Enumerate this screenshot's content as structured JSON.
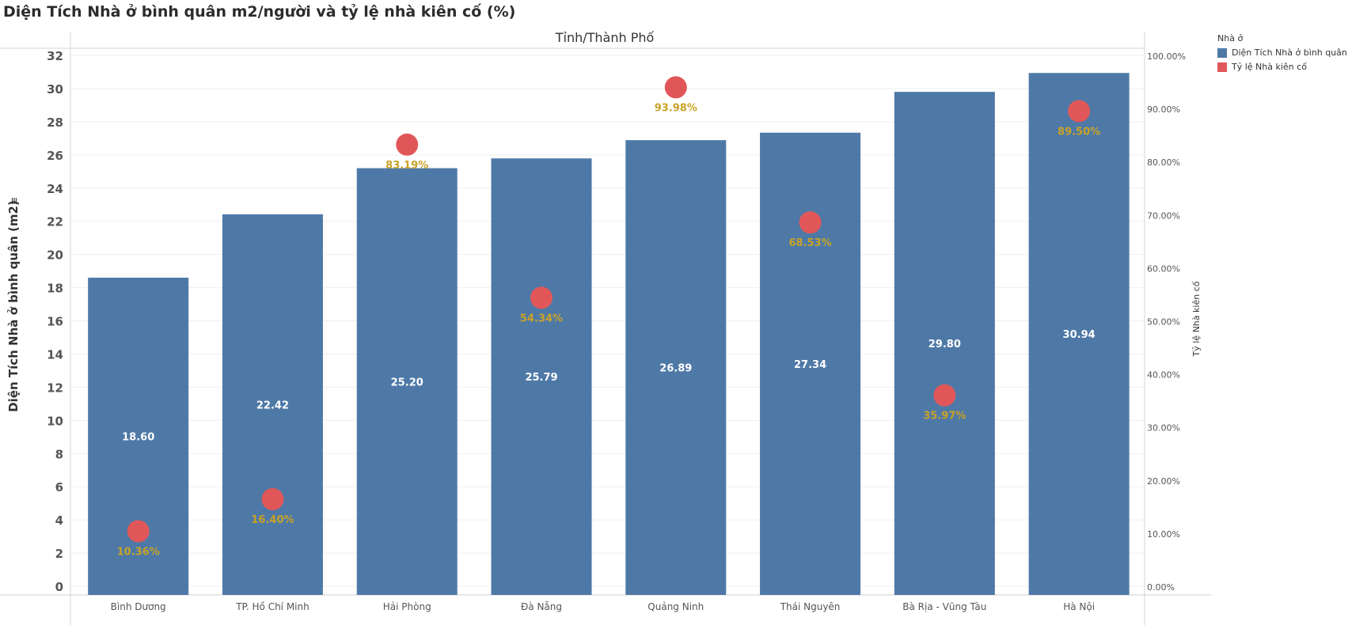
{
  "title": "Diện Tích Nhà ở bình quân m2/người và tỷ lệ nhà kiên cố (%)",
  "colors": {
    "bar": "#4e79a7",
    "dot": "#e15759",
    "dot_label": "#c9a227",
    "bar_label": "#ffffff"
  },
  "chart_data": {
    "type": "bar",
    "column_header": "Tỉnh/Thành Phố",
    "categories": [
      "Bình Dương",
      "TP. Hồ Chí Minh",
      "Hải Phòng",
      "Đà Nẵng",
      "Quảng Ninh",
      "Thái Nguyên",
      "Bà Rịa - Vũng Tàu",
      "Hà Nội"
    ],
    "series": [
      {
        "name": "Diện Tích Nhà ở bình quân",
        "type": "bar",
        "axis": "left",
        "values": [
          18.6,
          22.42,
          25.2,
          25.79,
          26.89,
          27.34,
          29.8,
          30.94
        ],
        "labels": [
          "18.60",
          "22.42",
          "25.20",
          "25.79",
          "26.89",
          "27.34",
          "29.80",
          "30.94"
        ]
      },
      {
        "name": "Tỷ lệ Nhà kiên cố",
        "type": "scatter",
        "axis": "right",
        "values": [
          10.36,
          16.4,
          83.19,
          54.34,
          93.98,
          68.53,
          35.97,
          89.5
        ],
        "labels": [
          "10.36%",
          "16.40%",
          "83.19%",
          "54.34%",
          "93.98%",
          "68.53%",
          "35.97%",
          "89.50%"
        ]
      }
    ],
    "ylabel": "Diện Tích Nhà ở bình quân (m2)",
    "ylabel_right": "Tỷ lệ Nhà kiên cố",
    "ylim": [
      0,
      32
    ],
    "ylim_right": [
      0,
      100
    ],
    "yticks": [
      "0",
      "2",
      "4",
      "6",
      "8",
      "10",
      "12",
      "14",
      "16",
      "18",
      "20",
      "22",
      "24",
      "26",
      "28",
      "30",
      "32"
    ],
    "yticks_right": [
      "0.00%",
      "10.00%",
      "20.00%",
      "30.00%",
      "40.00%",
      "50.00%",
      "60.00%",
      "70.00%",
      "80.00%",
      "90.00%",
      "100.00%"
    ],
    "legend": {
      "title": "Nhà ở",
      "position": "right"
    },
    "grid": true
  }
}
